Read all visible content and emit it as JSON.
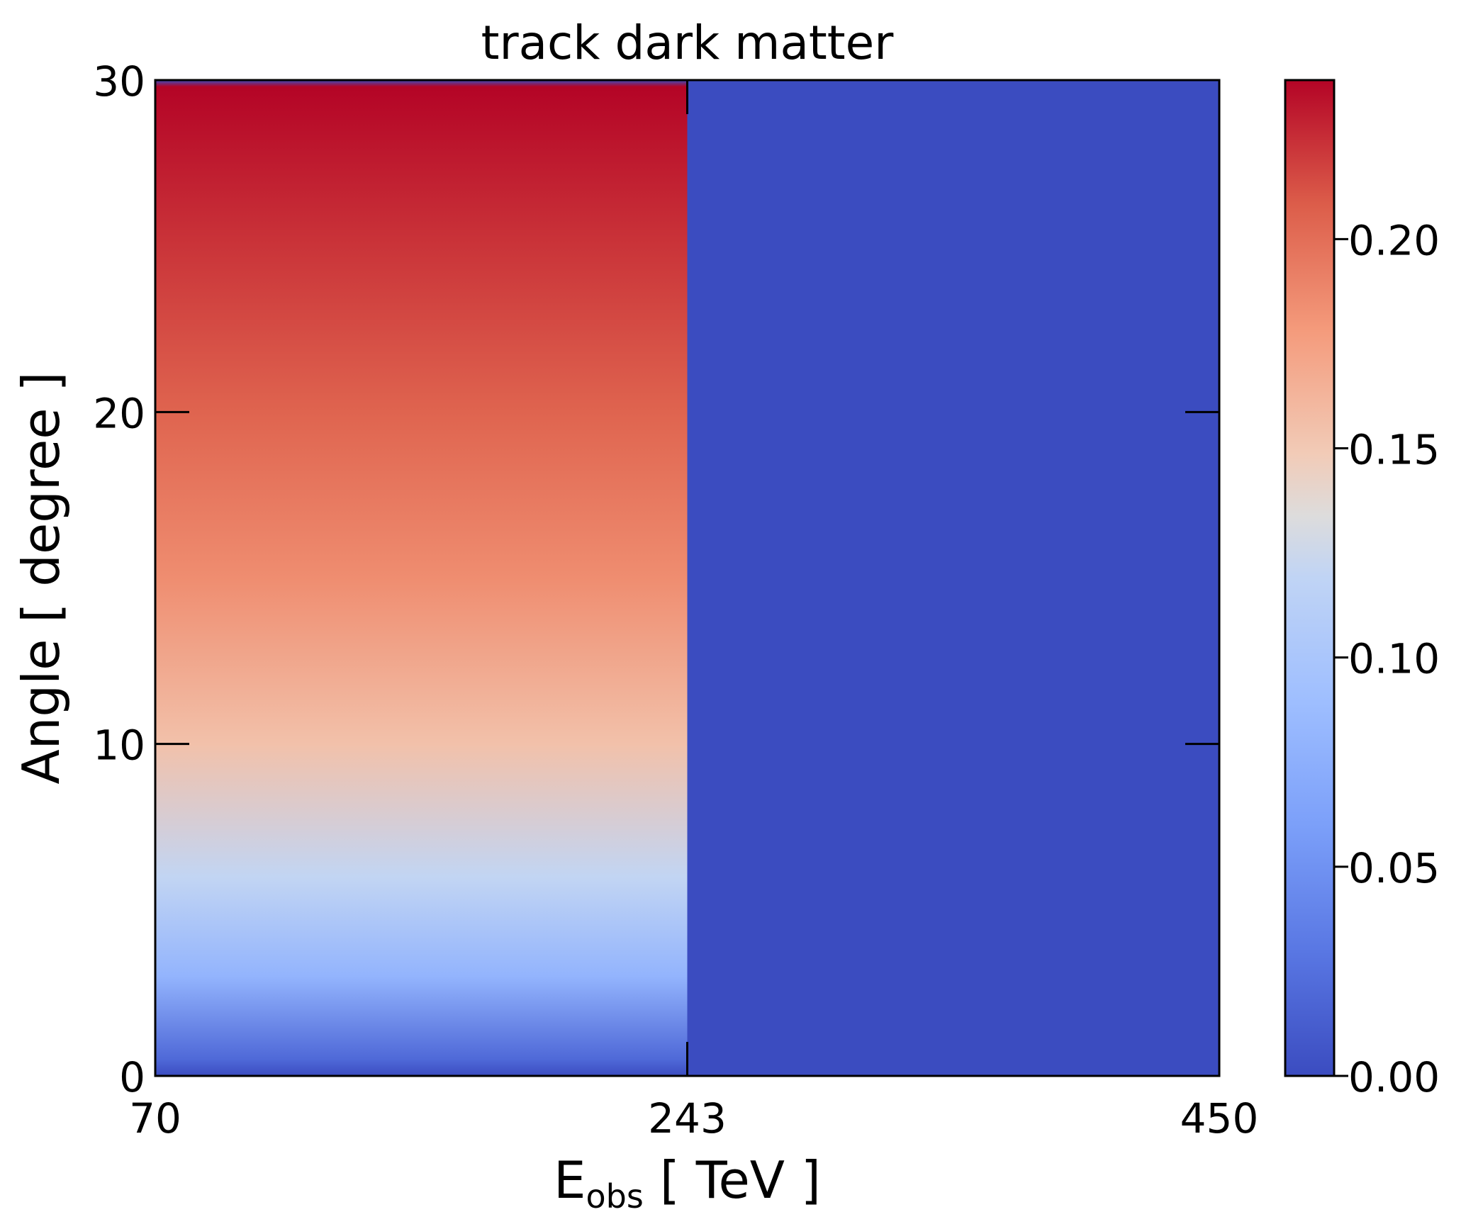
{
  "chart_data": {
    "type": "heatmap",
    "title": "track dark matter",
    "xlabel": {
      "main": "E",
      "subscript": "obs",
      "suffix": " [ TeV ]"
    },
    "ylabel": "Angle [ degree ]",
    "x_edges": [
      70,
      243,
      450
    ],
    "x_ticks": [
      "70",
      "243",
      "450"
    ],
    "y_edges": [
      0,
      30
    ],
    "ylim": [
      0,
      30
    ],
    "y_ticks": [
      {
        "value": 0,
        "label": "0"
      },
      {
        "value": 10,
        "label": "10"
      },
      {
        "value": 20,
        "label": "20"
      },
      {
        "value": 30,
        "label": "30"
      }
    ],
    "cells": [
      {
        "x_range": [
          70,
          243
        ],
        "profile": "gradient along angle",
        "angle_values": [
          {
            "angle": 0,
            "value": 0.0
          },
          {
            "angle": 0.5,
            "value": 0.02
          },
          {
            "angle": 3,
            "value": 0.08
          },
          {
            "angle": 6,
            "value": 0.12
          },
          {
            "angle": 10,
            "value": 0.155
          },
          {
            "angle": 15,
            "value": 0.185
          },
          {
            "angle": 20,
            "value": 0.205
          },
          {
            "angle": 25,
            "value": 0.222
          },
          {
            "angle": 29.8,
            "value": 0.238
          },
          {
            "angle": 30,
            "value": 0.0
          }
        ]
      },
      {
        "x_range": [
          243,
          450
        ],
        "profile": "uniform",
        "value": 0.0
      }
    ],
    "colorbar": {
      "colormap": "coolwarm",
      "range": [
        0.0,
        0.238
      ],
      "ticks": [
        {
          "value": 0.0,
          "label": "0.00"
        },
        {
          "value": 0.05,
          "label": "0.05"
        },
        {
          "value": 0.1,
          "label": "0.10"
        },
        {
          "value": 0.15,
          "label": "0.15"
        },
        {
          "value": 0.2,
          "label": "0.20"
        }
      ],
      "stops": [
        {
          "offset": 0.0,
          "color": "#3b4cc0"
        },
        {
          "offset": 0.125,
          "color": "#5977e3"
        },
        {
          "offset": 0.25,
          "color": "#7b9ff9"
        },
        {
          "offset": 0.375,
          "color": "#9ebeff"
        },
        {
          "offset": 0.5,
          "color": "#c0d4f5"
        },
        {
          "offset": 0.5625,
          "color": "#dddcdc"
        },
        {
          "offset": 0.625,
          "color": "#f2cbb7"
        },
        {
          "offset": 0.75,
          "color": "#f49a7b"
        },
        {
          "offset": 0.875,
          "color": "#dc5d4a"
        },
        {
          "offset": 1.0,
          "color": "#b40426"
        }
      ]
    },
    "grid": false
  }
}
